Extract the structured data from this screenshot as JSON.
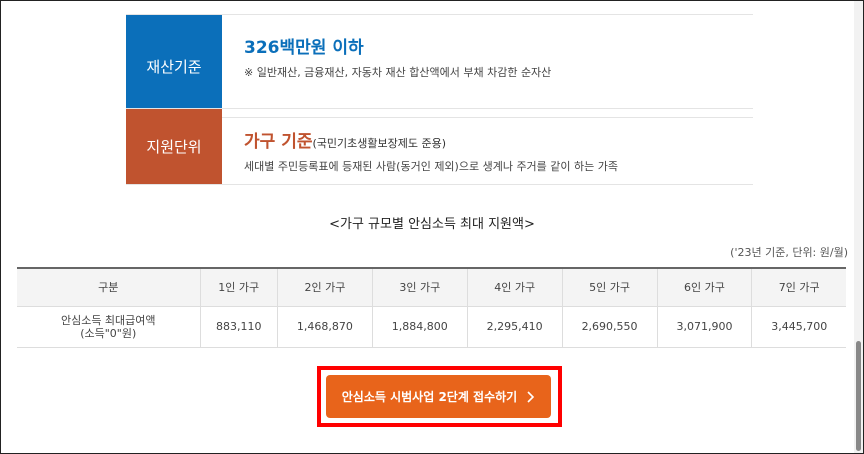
{
  "cards": [
    {
      "label": "재산기준",
      "headline": "326백만원 이하",
      "headline_note": "",
      "desc": "※ 일반재산, 금융재산, 자동차 재산 합산액에서 부채 차감한 순자산",
      "color": "#0b6fba"
    },
    {
      "label": "지원단위",
      "headline": "가구 기준",
      "headline_note": "(국민기초생활보장제도 준용)",
      "desc": "세대별 주민등록표에 등재된 사람(동거인 제외)으로 생계나 주거를 같이 하는 가족",
      "color": "#c0532f"
    }
  ],
  "table_title": "<가구 규모별 안심소득 최대 지원액>",
  "unit_note": "('23년 기준, 단위: 원/월)",
  "table": {
    "headers": [
      "구분",
      "1인 가구",
      "2인 가구",
      "3인 가구",
      "4인 가구",
      "5인 가구",
      "6인 가구",
      "7인 가구"
    ],
    "row_label_1": "안심소득 최대급여액",
    "row_label_2": "(소득\"0\"원)",
    "values": [
      "883,110",
      "1,468,870",
      "1,884,800",
      "2,295,410",
      "2,690,550",
      "3,071,900",
      "3,445,700"
    ]
  },
  "button": {
    "label": "안심소득 시범사업 2단계 접수하기",
    "icon": "chevron-right-icon",
    "color": "#e8641b"
  }
}
